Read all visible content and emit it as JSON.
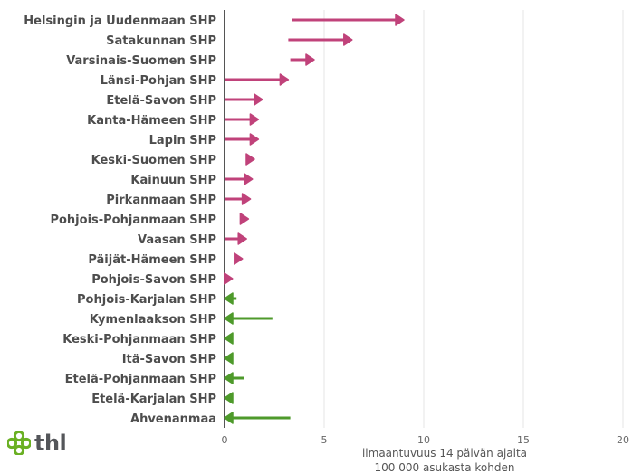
{
  "logo": {
    "text": "thl",
    "color": "#54565a",
    "icon_color": "#6ab023",
    "icon": "flower-icon"
  },
  "chart_data": {
    "type": "arrow",
    "xlabel_lines": [
      "ilmaantuvuus 14 päivän ajalta",
      "100 000 asukasta kohden"
    ],
    "xlim": [
      0,
      20
    ],
    "xticks": [
      0,
      5,
      10,
      15,
      20
    ],
    "grid": true,
    "colors": {
      "increase": "#c0427a",
      "decrease": "#4e9a2b",
      "axis": "#555555",
      "grid": "#e4e4e4"
    },
    "series": [
      {
        "name": "Helsingin ja Uudenmaan SHP",
        "from": 3.4,
        "to": 9.0
      },
      {
        "name": "Satakunnan SHP",
        "from": 3.2,
        "to": 6.4
      },
      {
        "name": "Varsinais-Suomen SHP",
        "from": 3.3,
        "to": 4.5
      },
      {
        "name": "Länsi-Pohjan SHP",
        "from": 0.0,
        "to": 3.2
      },
      {
        "name": "Etelä-Savon SHP",
        "from": 0.0,
        "to": 1.9
      },
      {
        "name": "Kanta-Hämeen SHP",
        "from": 0.0,
        "to": 1.7
      },
      {
        "name": "Lapin SHP",
        "from": 0.0,
        "to": 1.7
      },
      {
        "name": "Keski-Suomen SHP",
        "from": 1.1,
        "to": 1.5
      },
      {
        "name": "Kainuun SHP",
        "from": 0.0,
        "to": 1.4
      },
      {
        "name": "Pirkanmaan SHP",
        "from": 0.0,
        "to": 1.3
      },
      {
        "name": "Pohjois-Pohjanmaan SHP",
        "from": 0.8,
        "to": 1.2
      },
      {
        "name": "Vaasan SHP",
        "from": 0.0,
        "to": 1.1
      },
      {
        "name": "Päijät-Hämeen SHP",
        "from": 0.5,
        "to": 0.9
      },
      {
        "name": "Pohjois-Savon SHP",
        "from": 0.0,
        "to": 0.4
      },
      {
        "name": "Pohjois-Karjalan SHP",
        "from": 0.6,
        "to": 0.0
      },
      {
        "name": "Kymenlaakson SHP",
        "from": 2.4,
        "to": 0.0
      },
      {
        "name": "Keski-Pohjanmaan SHP",
        "from": 0.4,
        "to": 0.0
      },
      {
        "name": "Itä-Savon SHP",
        "from": 0.4,
        "to": 0.0
      },
      {
        "name": "Etelä-Pohjanmaan SHP",
        "from": 1.0,
        "to": 0.0
      },
      {
        "name": "Etelä-Karjalan SHP",
        "from": 0.4,
        "to": 0.0
      },
      {
        "name": "Ahvenanmaa",
        "from": 3.3,
        "to": 0.0
      }
    ]
  }
}
